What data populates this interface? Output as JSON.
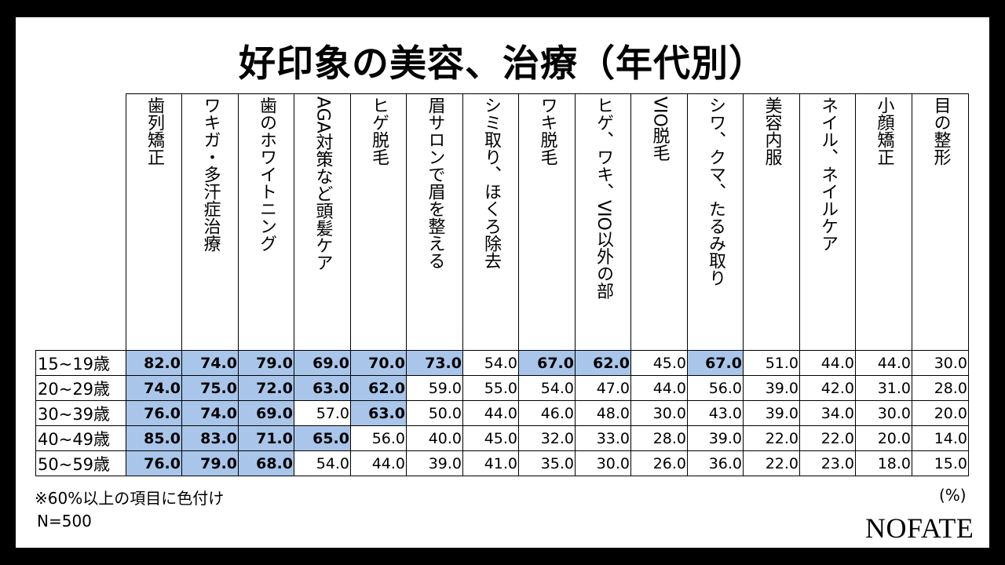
{
  "title": "好印象の美容、治療（年代別）",
  "note": "※60%以上の項目に色付け",
  "unit": "(%)",
  "sample": "N=500",
  "logo": "NOFATE",
  "highlight_color": "#a9c6ea",
  "highlight_threshold": 60,
  "chart_data": {
    "type": "table",
    "title": "好印象の美容、治療（年代別）",
    "columns": [
      "歯列矯正",
      "ワキガ・多汗症治療",
      "歯のホワイトニング",
      "AGA対策など頭髪ケア",
      "ヒゲ脱毛",
      "眉サロンで眉を整える",
      "シミ取り、ほくろ除去",
      "ワキ脱毛",
      "ヒゲ、ワキ、VIO以外の部",
      "VIO脱毛",
      "シワ、クマ、たるみ取り",
      "美容内服",
      "ネイル、ネイルケア",
      "小顔矯正",
      "目の整形"
    ],
    "rows": [
      {
        "label": "15~19歳",
        "values": [
          "82.0",
          "74.0",
          "79.0",
          "69.0",
          "70.0",
          "73.0",
          "54.0",
          "67.0",
          "62.0",
          "45.0",
          "67.0",
          "51.0",
          "44.0",
          "44.0",
          "30.0"
        ]
      },
      {
        "label": "20~29歳",
        "values": [
          "74.0",
          "75.0",
          "72.0",
          "63.0",
          "62.0",
          "59.0",
          "55.0",
          "54.0",
          "47.0",
          "44.0",
          "56.0",
          "39.0",
          "42.0",
          "31.0",
          "28.0"
        ]
      },
      {
        "label": "30~39歳",
        "values": [
          "76.0",
          "74.0",
          "69.0",
          "57.0",
          "63.0",
          "50.0",
          "44.0",
          "46.0",
          "48.0",
          "30.0",
          "43.0",
          "39.0",
          "34.0",
          "30.0",
          "20.0"
        ]
      },
      {
        "label": "40~49歳",
        "values": [
          "85.0",
          "83.0",
          "71.0",
          "65.0",
          "56.0",
          "40.0",
          "45.0",
          "32.0",
          "33.0",
          "28.0",
          "39.0",
          "22.0",
          "22.0",
          "20.0",
          "14.0"
        ]
      },
      {
        "label": "50~59歳",
        "values": [
          "76.0",
          "79.0",
          "68.0",
          "54.0",
          "44.0",
          "39.0",
          "41.0",
          "35.0",
          "30.0",
          "26.0",
          "36.0",
          "22.0",
          "23.0",
          "18.0",
          "15.0"
        ]
      }
    ]
  }
}
